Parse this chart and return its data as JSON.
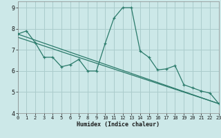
{
  "xlabel": "Humidex (Indice chaleur)",
  "bg_color": "#cce8e8",
  "grid_color": "#aacccc",
  "line_color": "#2a7a6a",
  "xlim": [
    0,
    23
  ],
  "ylim": [
    4.0,
    9.3
  ],
  "yticks": [
    4,
    5,
    6,
    7,
    8,
    9
  ],
  "xticks": [
    0,
    1,
    2,
    3,
    4,
    5,
    6,
    7,
    8,
    9,
    10,
    11,
    12,
    13,
    14,
    15,
    16,
    17,
    18,
    19,
    20,
    21,
    22,
    23
  ],
  "line1_x": [
    0,
    1,
    2,
    3,
    4,
    5,
    6,
    7,
    8,
    9,
    10,
    11,
    12,
    13,
    14,
    15,
    16,
    17,
    18,
    19,
    20,
    21,
    22,
    23
  ],
  "line1_y": [
    7.75,
    7.9,
    7.35,
    6.65,
    6.65,
    6.2,
    6.3,
    6.55,
    6.0,
    6.0,
    7.3,
    8.5,
    9.0,
    9.0,
    6.95,
    6.65,
    6.05,
    6.1,
    6.25,
    5.35,
    5.2,
    5.05,
    4.95,
    4.45
  ],
  "line2_x": [
    0,
    23
  ],
  "line2_y": [
    7.75,
    4.45
  ],
  "line3_x": [
    0,
    23
  ],
  "line3_y": [
    7.6,
    4.45
  ]
}
